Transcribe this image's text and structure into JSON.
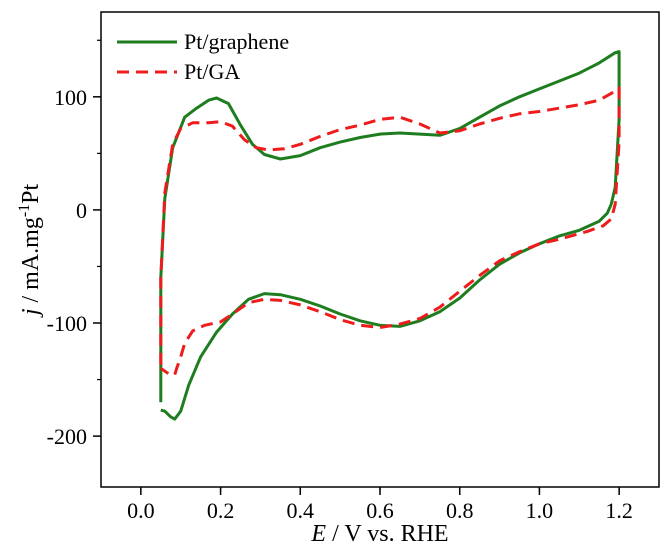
{
  "chart_data": {
    "type": "line",
    "xlabel": {
      "italic": "E",
      "rest": " / V vs. RHE"
    },
    "ylabel": {
      "italic": "j",
      "mid": " / mA.mg",
      "sup": "-1",
      "tail": "Pt"
    },
    "xlim": [
      -0.1,
      1.3
    ],
    "ylim": [
      -245,
      175
    ],
    "xticks": [
      0.0,
      0.2,
      0.4,
      0.6,
      0.8,
      1.0,
      1.2
    ],
    "xtick_labels": [
      "0.0",
      "0.2",
      "0.4",
      "0.6",
      "0.8",
      "1.0",
      "1.2"
    ],
    "yticks": [
      -200,
      -100,
      0,
      100
    ],
    "ytick_labels": [
      "-200",
      "-100",
      "0",
      "100"
    ],
    "grid": false,
    "legend_position": "top-left",
    "series": [
      {
        "name": "Pt/graphene",
        "color": "#1e7d1e",
        "dash": "solid",
        "points": [
          [
            0.05,
            -170
          ],
          [
            0.05,
            -60
          ],
          [
            0.06,
            10
          ],
          [
            0.08,
            55
          ],
          [
            0.11,
            82
          ],
          [
            0.14,
            90
          ],
          [
            0.17,
            97
          ],
          [
            0.19,
            99
          ],
          [
            0.22,
            94
          ],
          [
            0.25,
            75
          ],
          [
            0.28,
            58
          ],
          [
            0.31,
            49
          ],
          [
            0.35,
            45
          ],
          [
            0.4,
            48
          ],
          [
            0.45,
            55
          ],
          [
            0.5,
            60
          ],
          [
            0.55,
            64
          ],
          [
            0.6,
            67
          ],
          [
            0.65,
            68
          ],
          [
            0.7,
            67
          ],
          [
            0.75,
            66
          ],
          [
            0.8,
            72
          ],
          [
            0.85,
            82
          ],
          [
            0.9,
            92
          ],
          [
            0.95,
            100
          ],
          [
            1.0,
            107
          ],
          [
            1.05,
            114
          ],
          [
            1.1,
            121
          ],
          [
            1.15,
            130
          ],
          [
            1.19,
            139
          ],
          [
            1.2,
            140
          ],
          [
            1.2,
            80
          ],
          [
            1.19,
            20
          ],
          [
            1.18,
            5
          ],
          [
            1.17,
            -3
          ],
          [
            1.15,
            -10
          ],
          [
            1.1,
            -18
          ],
          [
            1.05,
            -23
          ],
          [
            1.0,
            -30
          ],
          [
            0.95,
            -38
          ],
          [
            0.9,
            -48
          ],
          [
            0.85,
            -62
          ],
          [
            0.8,
            -78
          ],
          [
            0.75,
            -90
          ],
          [
            0.7,
            -98
          ],
          [
            0.65,
            -103
          ],
          [
            0.6,
            -102
          ],
          [
            0.55,
            -98
          ],
          [
            0.5,
            -92
          ],
          [
            0.45,
            -85
          ],
          [
            0.4,
            -79
          ],
          [
            0.35,
            -75
          ],
          [
            0.31,
            -74
          ],
          [
            0.27,
            -79
          ],
          [
            0.23,
            -92
          ],
          [
            0.19,
            -108
          ],
          [
            0.15,
            -130
          ],
          [
            0.12,
            -155
          ],
          [
            0.1,
            -178
          ],
          [
            0.085,
            -185
          ],
          [
            0.075,
            -183
          ],
          [
            0.06,
            -178
          ],
          [
            0.05,
            -177
          ]
        ]
      },
      {
        "name": "Pt/GA",
        "color": "#ee1c1c",
        "dash": "dashed",
        "points": [
          [
            0.05,
            -137
          ],
          [
            0.05,
            -60
          ],
          [
            0.06,
            15
          ],
          [
            0.08,
            58
          ],
          [
            0.1,
            72
          ],
          [
            0.13,
            77
          ],
          [
            0.17,
            77
          ],
          [
            0.2,
            78
          ],
          [
            0.23,
            74
          ],
          [
            0.26,
            62
          ],
          [
            0.29,
            55
          ],
          [
            0.32,
            53
          ],
          [
            0.36,
            54
          ],
          [
            0.4,
            58
          ],
          [
            0.45,
            65
          ],
          [
            0.5,
            71
          ],
          [
            0.55,
            75
          ],
          [
            0.6,
            80
          ],
          [
            0.65,
            82
          ],
          [
            0.7,
            76
          ],
          [
            0.75,
            68
          ],
          [
            0.8,
            70
          ],
          [
            0.85,
            76
          ],
          [
            0.9,
            81
          ],
          [
            0.95,
            85
          ],
          [
            1.0,
            87
          ],
          [
            1.05,
            90
          ],
          [
            1.1,
            93
          ],
          [
            1.15,
            97
          ],
          [
            1.19,
            105
          ],
          [
            1.2,
            108
          ],
          [
            1.2,
            60
          ],
          [
            1.19,
            5
          ],
          [
            1.18,
            -8
          ],
          [
            1.16,
            -14
          ],
          [
            1.12,
            -19
          ],
          [
            1.05,
            -26
          ],
          [
            1.0,
            -30
          ],
          [
            0.95,
            -37
          ],
          [
            0.9,
            -45
          ],
          [
            0.85,
            -58
          ],
          [
            0.8,
            -72
          ],
          [
            0.75,
            -86
          ],
          [
            0.7,
            -96
          ],
          [
            0.65,
            -101
          ],
          [
            0.6,
            -104
          ],
          [
            0.55,
            -102
          ],
          [
            0.5,
            -97
          ],
          [
            0.45,
            -90
          ],
          [
            0.4,
            -84
          ],
          [
            0.35,
            -80
          ],
          [
            0.31,
            -79
          ],
          [
            0.27,
            -82
          ],
          [
            0.23,
            -92
          ],
          [
            0.2,
            -99
          ],
          [
            0.16,
            -102
          ],
          [
            0.13,
            -107
          ],
          [
            0.11,
            -118
          ],
          [
            0.1,
            -130
          ],
          [
            0.09,
            -140
          ],
          [
            0.085,
            -146
          ],
          [
            0.07,
            -145
          ],
          [
            0.05,
            -140
          ]
        ]
      }
    ]
  }
}
